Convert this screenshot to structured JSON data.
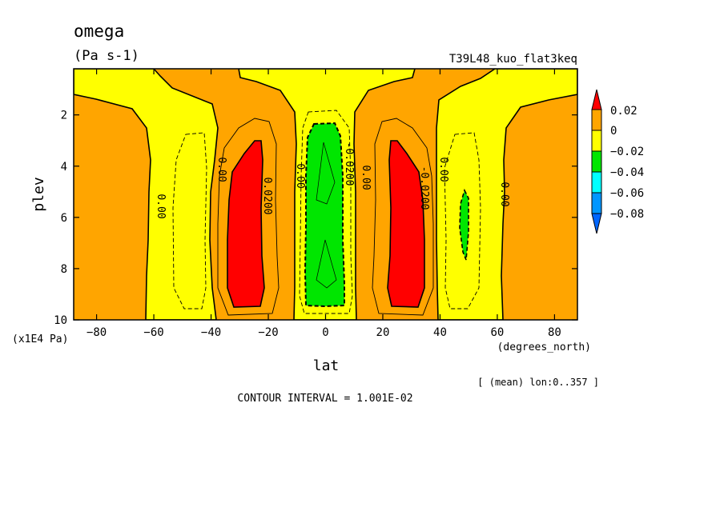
{
  "chart_data": {
    "type": "heatmap",
    "title": "omega",
    "units": "(Pa s-1)",
    "run_label": "T39L48_kuo_flat3keq",
    "xlabel": "lat",
    "x_unit": "(degrees_north)",
    "ylabel": "plev",
    "y_unit": "(x1E4 Pa)",
    "mean_note": "[ (mean) lon:0..357 ]",
    "contour_interval": "CONTOUR INTERVAL = 1.001E-02",
    "xlim": [
      -88,
      88
    ],
    "ylim": [
      10,
      0.2
    ],
    "x_ticks": [
      -80,
      -60,
      -40,
      -20,
      0,
      20,
      40,
      60,
      80
    ],
    "y_ticks": [
      2,
      4,
      6,
      8,
      10
    ],
    "colorbar": {
      "labels": [
        "0.02",
        "0",
        "−0.02",
        "−0.04",
        "−0.06",
        "−0.08"
      ],
      "colors": [
        "#ff0000",
        "#ffa500",
        "#ffff00",
        "#00e600",
        "#00ffff",
        "#0096ff"
      ]
    },
    "contour_labels": [
      "0.00",
      "0.00",
      "0.0200",
      "0.00",
      "-0.0200",
      "0.00",
      "-0.0200",
      "0.00",
      "0.00"
    ],
    "regions": [
      {
        "name": "tropical-ascent",
        "lat_range": [
          -8,
          8
        ],
        "plev_range": [
          2.3,
          9.5
        ],
        "band": "-0.04..-0.02",
        "color": "#00e600"
      },
      {
        "name": "sh-subsidence-max",
        "lat_range": [
          -34,
          -22
        ],
        "plev_range": [
          2.9,
          9.5
        ],
        "band": ">0.02",
        "color": "#ff0000"
      },
      {
        "name": "nh-subsidence-max",
        "lat_range": [
          22,
          34
        ],
        "plev_range": [
          2.9,
          9.5
        ],
        "band": ">0.02",
        "color": "#ff0000"
      },
      {
        "name": "sh-midlat-ascent",
        "lat_range": [
          -62,
          -40
        ],
        "plev_range": [
          0.2,
          10
        ],
        "band": "-0.02..0",
        "color": "#ffff00"
      },
      {
        "name": "nh-midlat-ascent",
        "lat_range": [
          38,
          58
        ],
        "plev_range": [
          0.2,
          10
        ],
        "band": "-0.02..0",
        "color": "#ffff00"
      },
      {
        "name": "nh-midlat-ascent-core",
        "lat_range": [
          47,
          50
        ],
        "plev_range": [
          4.8,
          8.1
        ],
        "band": "-0.04..-0.02",
        "color": "#00e600"
      }
    ]
  }
}
